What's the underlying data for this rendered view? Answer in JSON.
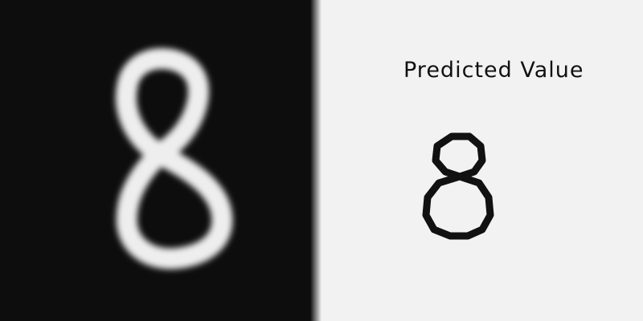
{
  "input": {
    "digit_image": "handwritten digit 8 on black background",
    "background_color": "#0d0d0d",
    "stroke_color": "#eeeeee"
  },
  "result": {
    "title": "Predicted Value",
    "value": "8",
    "text_color": "#111111",
    "background_color": "#f2f2f2"
  }
}
